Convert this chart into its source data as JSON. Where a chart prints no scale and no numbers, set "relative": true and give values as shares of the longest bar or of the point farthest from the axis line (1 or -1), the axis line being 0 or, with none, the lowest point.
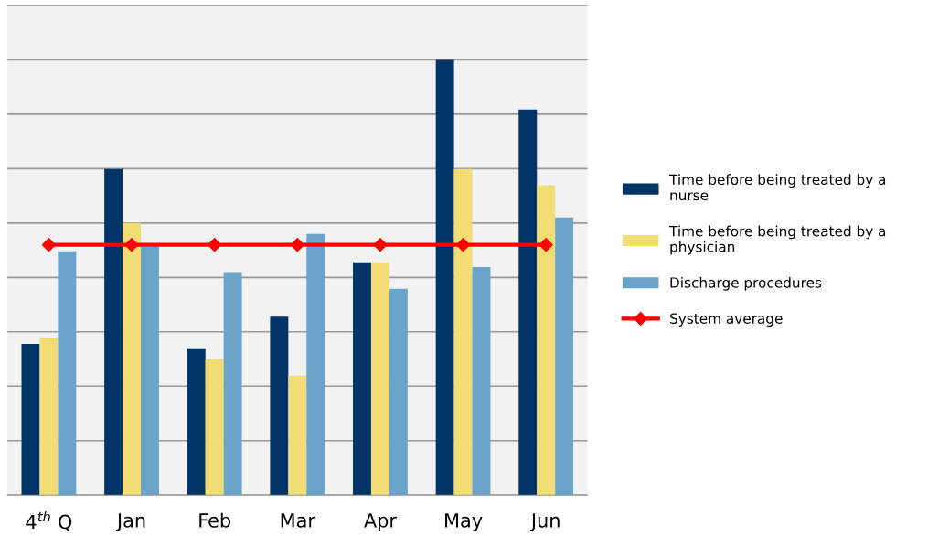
{
  "chart_data": {
    "type": "bar",
    "relative": true,
    "grid": "y",
    "legend": "right",
    "marker": "diamond",
    "categories": [
      "4$^{th}$ Q",
      "Jan",
      "Feb",
      "Mar",
      "Apr",
      "May",
      "Jun"
    ],
    "series": [
      {
        "name": "Time before being treated by a nurse",
        "color": "#003366",
        "values": [
          0.347,
          0.749,
          0.337,
          0.41,
          0.535,
          1,
          0.886
        ]
      },
      {
        "name": "Time before being treated by a physician",
        "color": "#f2dc75",
        "values": [
          0.362,
          0.625,
          0.312,
          0.274,
          0.535,
          0.749,
          0.712
        ]
      },
      {
        "name": "Discharge procedures",
        "color": "#6aa4c8",
        "values": [
          0.56,
          0.571,
          0.512,
          0.6,
          0.474,
          0.524,
          0.638
        ]
      },
      {
        "name": "System average",
        "type": "line",
        "color": "#ff0000",
        "values": [
          0.575,
          0.575,
          0.575,
          0.575,
          0.575,
          0.575,
          0.575
        ]
      }
    ]
  }
}
